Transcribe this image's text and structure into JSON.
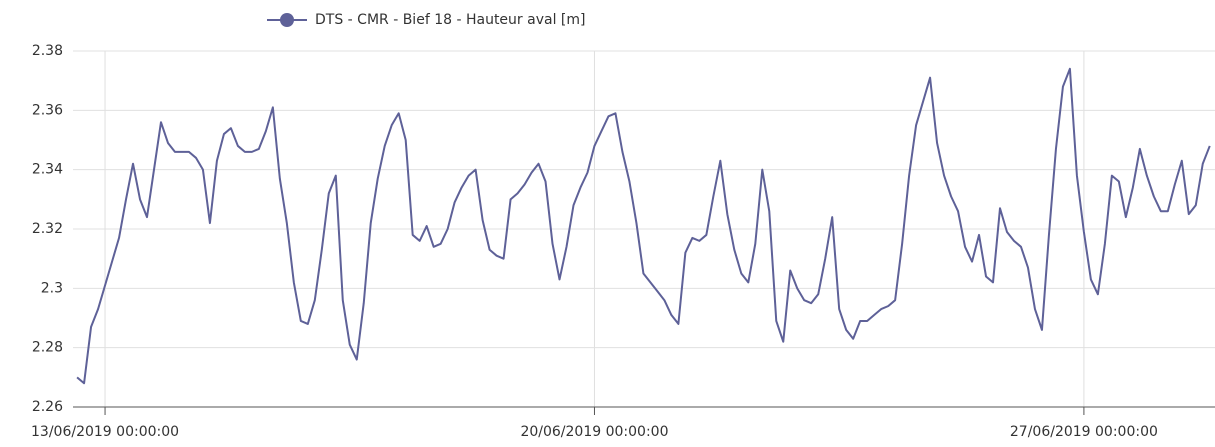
{
  "chart_data": {
    "type": "line",
    "x": [
      "12/06/2019 14:24:00",
      "12/06/2019 16:48:00",
      "12/06/2019 19:12:00",
      "12/06/2019 21:36:00",
      "13/06/2019 00:00:00",
      "13/06/2019 02:24:00",
      "13/06/2019 04:48:00",
      "13/06/2019 07:12:00",
      "13/06/2019 09:36:00",
      "13/06/2019 12:00:00",
      "13/06/2019 14:24:00",
      "13/06/2019 16:48:00",
      "13/06/2019 19:12:00",
      "13/06/2019 21:36:00",
      "14/06/2019 00:00:00",
      "14/06/2019 02:24:00",
      "14/06/2019 04:48:00",
      "14/06/2019 07:12:00",
      "14/06/2019 09:36:00",
      "14/06/2019 12:00:00",
      "14/06/2019 14:24:00",
      "14/06/2019 16:48:00",
      "14/06/2019 19:12:00",
      "14/06/2019 21:36:00",
      "15/06/2019 00:00:00",
      "15/06/2019 02:24:00",
      "15/06/2019 04:48:00",
      "15/06/2019 07:12:00",
      "15/06/2019 09:36:00",
      "15/06/2019 12:00:00",
      "15/06/2019 14:24:00",
      "15/06/2019 16:48:00",
      "15/06/2019 19:12:00",
      "15/06/2019 21:36:00",
      "16/06/2019 00:00:00",
      "16/06/2019 02:24:00",
      "16/06/2019 04:48:00",
      "16/06/2019 07:12:00",
      "16/06/2019 09:36:00",
      "16/06/2019 12:00:00",
      "16/06/2019 14:24:00",
      "16/06/2019 16:48:00",
      "16/06/2019 19:12:00",
      "16/06/2019 21:36:00",
      "17/06/2019 00:00:00",
      "17/06/2019 02:24:00",
      "17/06/2019 04:48:00",
      "17/06/2019 07:12:00",
      "17/06/2019 09:36:00",
      "17/06/2019 12:00:00",
      "17/06/2019 14:24:00",
      "17/06/2019 16:48:00",
      "17/06/2019 19:12:00",
      "17/06/2019 21:36:00",
      "18/06/2019 00:00:00",
      "18/06/2019 02:24:00",
      "18/06/2019 04:48:00",
      "18/06/2019 07:12:00",
      "18/06/2019 09:36:00",
      "18/06/2019 12:00:00",
      "18/06/2019 14:24:00",
      "18/06/2019 16:48:00",
      "18/06/2019 19:12:00",
      "18/06/2019 21:36:00",
      "19/06/2019 00:00:00",
      "19/06/2019 02:24:00",
      "19/06/2019 04:48:00",
      "19/06/2019 07:12:00",
      "19/06/2019 09:36:00",
      "19/06/2019 12:00:00",
      "19/06/2019 14:24:00",
      "19/06/2019 16:48:00",
      "19/06/2019 19:12:00",
      "19/06/2019 21:36:00",
      "20/06/2019 00:00:00",
      "20/06/2019 02:24:00",
      "20/06/2019 04:48:00",
      "20/06/2019 07:12:00",
      "20/06/2019 09:36:00",
      "20/06/2019 12:00:00",
      "20/06/2019 14:24:00",
      "20/06/2019 16:48:00",
      "20/06/2019 19:12:00",
      "20/06/2019 21:36:00",
      "21/06/2019 00:00:00",
      "21/06/2019 02:24:00",
      "21/06/2019 04:48:00",
      "21/06/2019 07:12:00",
      "21/06/2019 09:36:00",
      "21/06/2019 12:00:00",
      "21/06/2019 14:24:00",
      "21/06/2019 16:48:00",
      "21/06/2019 19:12:00",
      "21/06/2019 21:36:00",
      "22/06/2019 00:00:00",
      "22/06/2019 02:24:00",
      "22/06/2019 04:48:00",
      "22/06/2019 07:12:00",
      "22/06/2019 09:36:00",
      "22/06/2019 12:00:00",
      "22/06/2019 14:24:00",
      "22/06/2019 16:48:00",
      "22/06/2019 19:12:00",
      "22/06/2019 21:36:00",
      "23/06/2019 00:00:00",
      "23/06/2019 02:24:00",
      "23/06/2019 04:48:00",
      "23/06/2019 07:12:00",
      "23/06/2019 09:36:00",
      "23/06/2019 12:00:00",
      "23/06/2019 14:24:00",
      "23/06/2019 16:48:00",
      "23/06/2019 19:12:00",
      "23/06/2019 21:36:00",
      "24/06/2019 00:00:00",
      "24/06/2019 02:24:00",
      "24/06/2019 04:48:00",
      "24/06/2019 07:12:00",
      "24/06/2019 09:36:00",
      "24/06/2019 12:00:00",
      "24/06/2019 14:24:00",
      "24/06/2019 16:48:00",
      "24/06/2019 19:12:00",
      "24/06/2019 21:36:00",
      "25/06/2019 00:00:00",
      "25/06/2019 02:24:00",
      "25/06/2019 04:48:00",
      "25/06/2019 07:12:00",
      "25/06/2019 09:36:00",
      "25/06/2019 12:00:00",
      "25/06/2019 14:24:00",
      "25/06/2019 16:48:00",
      "25/06/2019 19:12:00",
      "25/06/2019 21:36:00",
      "26/06/2019 00:00:00",
      "26/06/2019 02:24:00",
      "26/06/2019 04:48:00",
      "26/06/2019 07:12:00",
      "26/06/2019 09:36:00",
      "26/06/2019 12:00:00",
      "26/06/2019 14:24:00",
      "26/06/2019 16:48:00",
      "26/06/2019 19:12:00",
      "26/06/2019 21:36:00",
      "27/06/2019 00:00:00",
      "27/06/2019 02:24:00",
      "27/06/2019 04:48:00",
      "27/06/2019 07:12:00",
      "27/06/2019 09:36:00",
      "27/06/2019 12:00:00",
      "27/06/2019 14:24:00",
      "27/06/2019 16:48:00",
      "27/06/2019 19:12:00",
      "27/06/2019 21:36:00",
      "28/06/2019 00:00:00",
      "28/06/2019 02:24:00",
      "28/06/2019 04:48:00",
      "28/06/2019 07:12:00",
      "28/06/2019 09:36:00",
      "28/06/2019 12:00:00",
      "28/06/2019 14:24:00",
      "28/06/2019 16:48:00",
      "28/06/2019 19:12:00"
    ],
    "series": [
      {
        "name": "DTS - CMR - Bief 18 - Hauteur aval [m]",
        "color": "#5e6198",
        "values": [
          2.27,
          2.268,
          2.287,
          2.293,
          2.301,
          2.309,
          2.317,
          2.33,
          2.342,
          2.33,
          2.324,
          2.34,
          2.356,
          2.349,
          2.346,
          2.346,
          2.346,
          2.344,
          2.34,
          2.322,
          2.343,
          2.352,
          2.354,
          2.348,
          2.346,
          2.346,
          2.347,
          2.353,
          2.361,
          2.337,
          2.322,
          2.302,
          2.289,
          2.288,
          2.296,
          2.313,
          2.332,
          2.338,
          2.296,
          2.281,
          2.276,
          2.295,
          2.322,
          2.337,
          2.348,
          2.355,
          2.359,
          2.35,
          2.318,
          2.316,
          2.321,
          2.314,
          2.315,
          2.32,
          2.329,
          2.334,
          2.338,
          2.34,
          2.323,
          2.313,
          2.311,
          2.31,
          2.33,
          2.332,
          2.335,
          2.339,
          2.342,
          2.336,
          2.315,
          2.303,
          2.314,
          2.328,
          2.334,
          2.339,
          2.348,
          2.353,
          2.358,
          2.359,
          2.346,
          2.336,
          2.322,
          2.305,
          2.302,
          2.299,
          2.296,
          2.291,
          2.288,
          2.312,
          2.317,
          2.316,
          2.318,
          2.331,
          2.343,
          2.325,
          2.313,
          2.305,
          2.302,
          2.315,
          2.34,
          2.326,
          2.289,
          2.282,
          2.306,
          2.3,
          2.296,
          2.295,
          2.298,
          2.31,
          2.324,
          2.293,
          2.286,
          2.283,
          2.289,
          2.289,
          2.291,
          2.293,
          2.294,
          2.296,
          2.315,
          2.338,
          2.355,
          2.363,
          2.371,
          2.349,
          2.338,
          2.331,
          2.326,
          2.314,
          2.309,
          2.318,
          2.304,
          2.302,
          2.327,
          2.319,
          2.316,
          2.314,
          2.307,
          2.293,
          2.286,
          2.318,
          2.347,
          2.368,
          2.374,
          2.338,
          2.319,
          2.303,
          2.298,
          2.315,
          2.338,
          2.336,
          2.324,
          2.334,
          2.347,
          2.338,
          2.331,
          2.326,
          2.326,
          2.335,
          2.343,
          2.325,
          2.328,
          2.342,
          2.348
        ]
      }
    ],
    "xlim": [
      "12/06/2019 13:00:00",
      "28/06/2019 21:00:00"
    ],
    "xticks": [
      "13/06/2019 00:00:00",
      "20/06/2019 00:00:00",
      "27/06/2019 00:00:00"
    ],
    "ylim": [
      2.26,
      2.38
    ],
    "yticks": [
      2.26,
      2.28,
      2.3,
      2.32,
      2.34,
      2.36,
      2.38
    ],
    "grid": true,
    "legend": "top"
  }
}
